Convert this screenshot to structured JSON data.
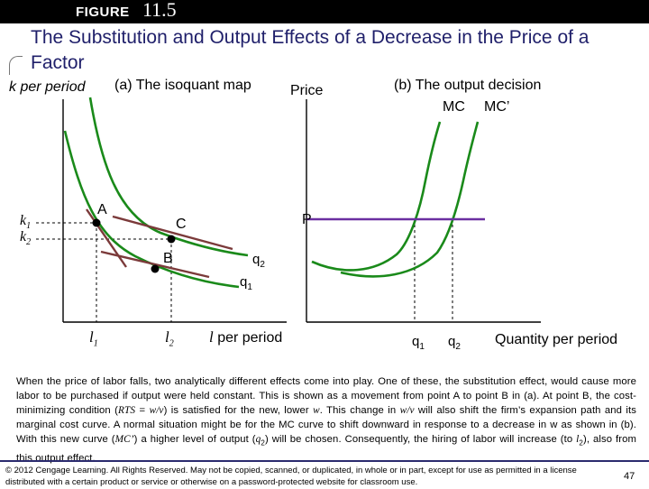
{
  "header": {
    "figure_label": "FIGURE",
    "figure_number": "11.5",
    "title": "The Substitution and Output Effects of a Decrease in the Price of a Factor"
  },
  "panel_a": {
    "y_axis_label": "k per period",
    "panel_title": "(a) The isoquant map",
    "k1": "k",
    "k1_sub": "1",
    "k2": "k",
    "k2_sub": "2",
    "point_a": "A",
    "point_b": "B",
    "point_c": "C",
    "q2_label": "q",
    "q2_sub": "2",
    "q1_label": "q",
    "q1_sub": "1",
    "l1": "l",
    "l1_sub": "1",
    "l2": "l",
    "l2_sub": "2",
    "x_axis_label_var": "l",
    "x_axis_label_rest": "per period"
  },
  "panel_b": {
    "y_axis_label": "Price",
    "panel_title": "(b) The output decision",
    "mc_label": "MC",
    "mc_prime_label": "MC’",
    "price_label": "P",
    "q1_label": "q",
    "q1_sub": "1",
    "q2_label": "q",
    "q2_sub": "2",
    "x_axis_label": "Quantity per period"
  },
  "caption": {
    "p1": "When the price of labor falls, two analytically different effects come into play. One of these, the substitution effect, would cause more labor to be purchased if output were held constant. This is shown as a movement from point A to point B in (a). At point B, the cost-minimizing condition (",
    "rts": "RTS",
    "p2": " = ",
    "wv1": "w/v",
    "p3": ") is satisfied for the new, lower ",
    "w": "w",
    "p4": ". This change in ",
    "wv2": "w/v",
    "p5": " will also shift the firm’s expansion path and its marginal cost curve. A normal situation might be for the MC curve to shift downward in response to a decrease in w as shown in (b). With this new curve (",
    "mcp": "MC’",
    "p6": ") a higher level of output (",
    "q2": "q",
    "q2sub": "2",
    "p7": ") will be chosen. Consequently, the hiring of labor will increase (to ",
    "l2": "l",
    "l2sub": "2",
    "p8": "), also from this output effect."
  },
  "footer": {
    "copyright": "© 2012 Cengage Learning. All Rights Reserved. May not be copied, scanned, or duplicated, in whole or in part, except for use as permitted in a license distributed with a certain product or service or otherwise on a password-protected website for classroom use.",
    "page_number": "47"
  },
  "colors": {
    "isoquant": "#1a8a1a",
    "budget_line": "#7b3a3a",
    "price_line": "#6a2fa0",
    "title": "#1f1f6a"
  }
}
